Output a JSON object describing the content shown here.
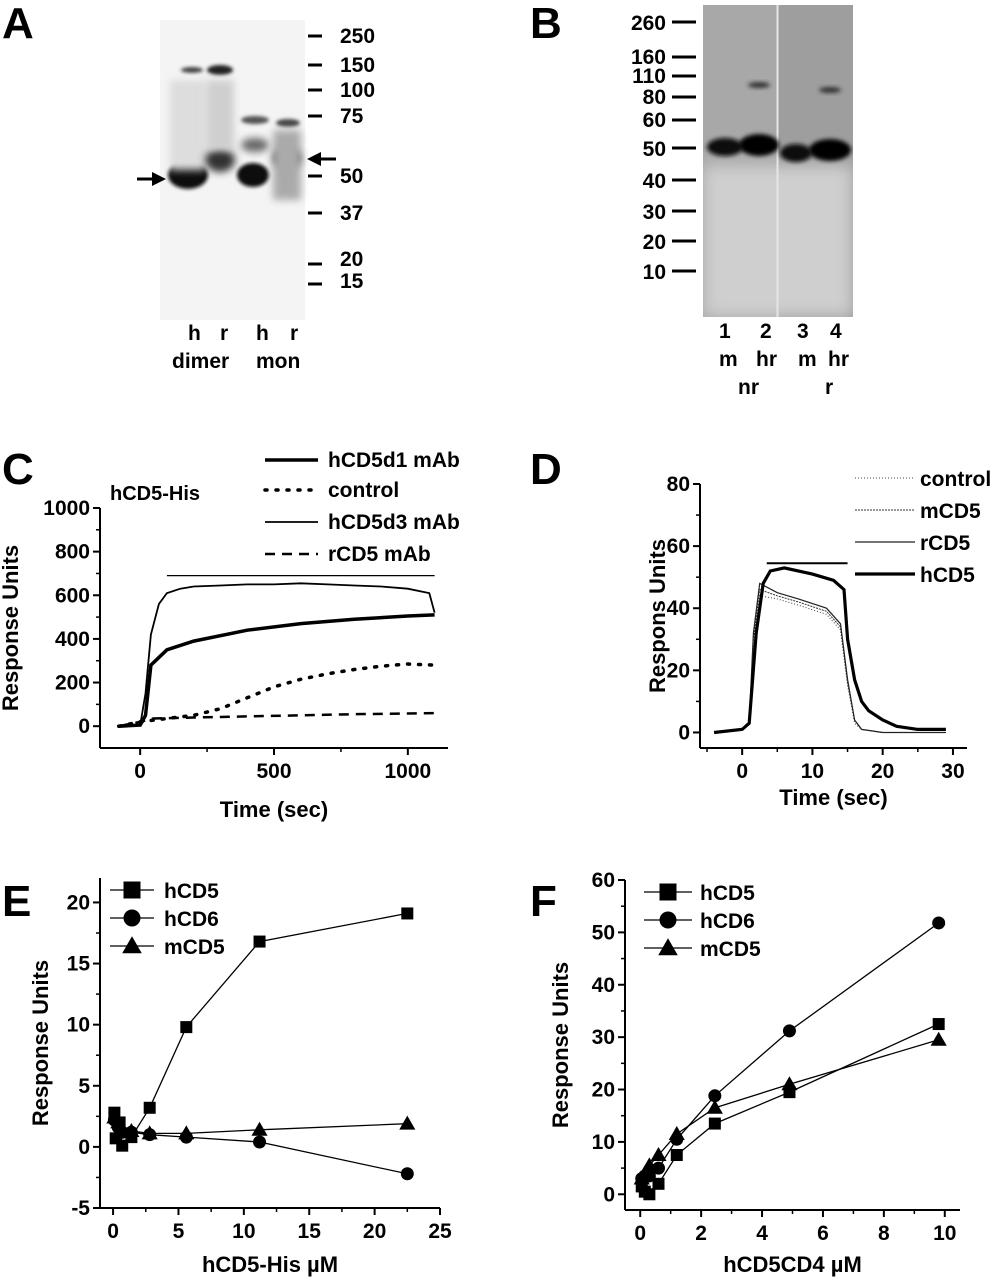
{
  "panels": {
    "A": {
      "letter": "A",
      "markers": [
        "250",
        "150",
        "100",
        "75",
        "50",
        "37",
        "20",
        "15"
      ],
      "lane_labels": [
        "h",
        "r",
        "h",
        "r"
      ],
      "group_labels": [
        "dimer",
        "mon"
      ]
    },
    "B": {
      "letter": "B",
      "markers": [
        "260",
        "160",
        "110",
        "80",
        "60",
        "50",
        "40",
        "30",
        "20",
        "10"
      ],
      "lane_numbers": [
        "1",
        "2",
        "3",
        "4"
      ],
      "lane_species": [
        "m",
        "hr",
        "m",
        "hr"
      ],
      "conditions": [
        "nr",
        "r"
      ]
    },
    "C": {
      "letter": "C",
      "inset_label": "hCD5-His",
      "legend": [
        "hCD5d1 mAb",
        "control",
        "hCD5d3 mAb",
        "rCD5 mAb"
      ],
      "xlabel": "Time (sec)",
      "ylabel": "Response Units",
      "xticks": [
        "0",
        "500",
        "1000"
      ],
      "yticks": [
        "0",
        "200",
        "400",
        "600",
        "800",
        "1000"
      ]
    },
    "D": {
      "letter": "D",
      "legend": [
        "control",
        "mCD5",
        "rCD5",
        "hCD5"
      ],
      "xlabel": "Time (sec)",
      "ylabel": "Respons Units",
      "xticks": [
        "0",
        "10",
        "20",
        "30"
      ],
      "yticks": [
        "0",
        "20",
        "40",
        "60",
        "80"
      ]
    },
    "E": {
      "letter": "E",
      "legend": [
        "hCD5",
        "hCD6",
        "mCD5"
      ],
      "xlabel": "hCD5-His µM",
      "ylabel": "Response Units",
      "xticks": [
        "0",
        "5",
        "10",
        "15",
        "20",
        "25"
      ],
      "yticks": [
        "-5",
        "0",
        "5",
        "10",
        "15",
        "20"
      ]
    },
    "F": {
      "letter": "F",
      "legend": [
        "hCD5",
        "hCD6",
        "mCD5"
      ],
      "xlabel": "hCD5CD4 µM",
      "ylabel": "Response Units",
      "xticks": [
        "0",
        "2",
        "4",
        "6",
        "8",
        "10"
      ],
      "yticks": [
        "0",
        "10",
        "20",
        "30",
        "40",
        "50",
        "60"
      ]
    }
  },
  "chart_data": [
    {
      "panel": "C",
      "type": "line",
      "xlabel": "Time (sec)",
      "ylabel": "Response Units",
      "xlim": [
        -150,
        1150
      ],
      "ylim": [
        -100,
        1000
      ],
      "series": [
        {
          "name": "hCD5d1 mAb",
          "x": [
            -80,
            0,
            20,
            40,
            100,
            200,
            400,
            600,
            800,
            1000,
            1100
          ],
          "y": [
            0,
            5,
            50,
            280,
            350,
            390,
            440,
            470,
            490,
            505,
            510
          ]
        },
        {
          "name": "control",
          "x": [
            -80,
            0,
            100,
            200,
            300,
            400,
            500,
            600,
            700,
            800,
            900,
            1000,
            1100
          ],
          "y": [
            0,
            20,
            35,
            50,
            80,
            130,
            180,
            215,
            240,
            260,
            275,
            285,
            280
          ]
        },
        {
          "name": "hCD5d3 mAb",
          "x": [
            -80,
            0,
            20,
            40,
            70,
            100,
            150,
            200,
            300,
            400,
            500,
            600,
            700,
            800,
            900,
            1000,
            1080,
            1100
          ],
          "y": [
            0,
            5,
            150,
            420,
            560,
            610,
            630,
            640,
            645,
            650,
            650,
            655,
            650,
            645,
            640,
            630,
            610,
            520
          ]
        },
        {
          "name": "rCD5 mAb",
          "x": [
            -80,
            0,
            50,
            200,
            400,
            600,
            800,
            1000,
            1100
          ],
          "y": [
            0,
            20,
            35,
            40,
            45,
            50,
            55,
            58,
            60
          ]
        }
      ]
    },
    {
      "panel": "D",
      "type": "line",
      "xlabel": "Time (sec)",
      "ylabel": "Respons Units",
      "xlim": [
        -6,
        32
      ],
      "ylim": [
        -5,
        80
      ],
      "series": [
        {
          "name": "control",
          "x": [
            -4,
            0,
            1,
            1.6,
            2.5,
            5,
            8,
            12,
            14,
            15,
            16,
            17,
            20,
            25,
            29
          ],
          "y": [
            0,
            1,
            3,
            30,
            44,
            43,
            41,
            38,
            33,
            15,
            3,
            1,
            0,
            0,
            0
          ]
        },
        {
          "name": "mCD5",
          "x": [
            -4,
            0,
            1,
            1.6,
            2.5,
            5,
            8,
            12,
            14,
            15,
            16,
            17,
            20,
            25,
            29
          ],
          "y": [
            0,
            1,
            3,
            30,
            46,
            44,
            42,
            39,
            34,
            16,
            4,
            1,
            0,
            0,
            0
          ]
        },
        {
          "name": "rCD5",
          "x": [
            -4,
            0,
            1,
            1.6,
            2.5,
            5,
            8,
            12,
            14,
            15,
            16,
            17,
            20,
            25,
            29
          ],
          "y": [
            0,
            1,
            3,
            32,
            48,
            45,
            43,
            40,
            35,
            17,
            4,
            1,
            0,
            0,
            0
          ]
        },
        {
          "name": "hCD5",
          "x": [
            -4,
            0,
            1,
            2,
            3,
            4,
            6,
            10,
            13,
            14.5,
            15,
            16,
            17,
            18,
            20,
            22,
            25,
            29
          ],
          "y": [
            0,
            1,
            3,
            32,
            48,
            52,
            53,
            51,
            49,
            46,
            30,
            17,
            10,
            7,
            4,
            2,
            1,
            1
          ]
        }
      ]
    },
    {
      "panel": "E",
      "type": "line",
      "xlabel": "hCD5-His µM",
      "ylabel": "Response Units",
      "xlim": [
        -1,
        25
      ],
      "ylim": [
        -5,
        22
      ],
      "series": [
        {
          "name": "hCD5",
          "x": [
            0.1,
            0.2,
            0.5,
            0.7,
            1.4,
            2.8,
            5.6,
            11.2,
            22.5
          ],
          "y": [
            2.8,
            0.7,
            2.0,
            0.1,
            0.8,
            3.2,
            9.8,
            16.8,
            19.1
          ]
        },
        {
          "name": "hCD6",
          "x": [
            0.1,
            0.4,
            0.7,
            1.4,
            2.8,
            5.6,
            11.2,
            22.5
          ],
          "y": [
            2.2,
            1.6,
            1.2,
            1.2,
            1.0,
            0.8,
            0.4,
            -2.2
          ]
        },
        {
          "name": "mCD5",
          "x": [
            0.1,
            0.4,
            0.7,
            1.4,
            2.8,
            5.6,
            11.2,
            22.5
          ],
          "y": [
            2.4,
            2.0,
            1.4,
            1.3,
            1.1,
            1.1,
            1.4,
            1.9
          ]
        }
      ]
    },
    {
      "panel": "F",
      "type": "line",
      "xlabel": "hCD5CD4 µM",
      "ylabel": "Response Units",
      "xlim": [
        -0.5,
        10.5
      ],
      "ylim": [
        -3,
        60
      ],
      "series": [
        {
          "name": "hCD5",
          "x": [
            0.05,
            0.15,
            0.3,
            0.6,
            1.2,
            2.45,
            4.9,
            9.8
          ],
          "y": [
            1.5,
            0.5,
            0,
            2.0,
            7.5,
            13.5,
            19.5,
            32.5
          ]
        },
        {
          "name": "hCD6",
          "x": [
            0.05,
            0.15,
            0.3,
            0.6,
            1.2,
            2.45,
            4.9,
            9.8
          ],
          "y": [
            3,
            3.5,
            3.5,
            5,
            10.5,
            18.8,
            31.2,
            51.8
          ]
        },
        {
          "name": "mCD5",
          "x": [
            0.05,
            0.15,
            0.3,
            0.6,
            1.2,
            2.45,
            4.9,
            9.8
          ],
          "y": [
            3,
            4,
            5.5,
            7.5,
            11.5,
            16.5,
            21,
            29.5
          ]
        }
      ]
    }
  ]
}
